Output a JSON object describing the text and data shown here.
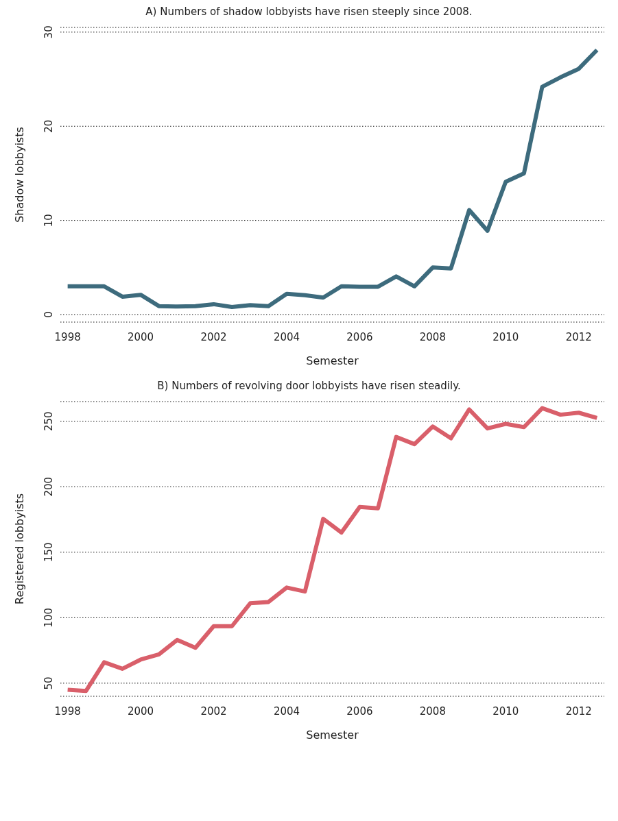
{
  "chart_data": [
    {
      "type": "line",
      "title": "A) Numbers of shadow lobbyists have risen steeply since 2008.",
      "xlabel": "Semester",
      "ylabel": "Shadow lobbyists",
      "grid": "y",
      "x": [
        1998,
        1998.5,
        1999,
        1999.5,
        2000,
        2000.5,
        2001,
        2001.5,
        2002,
        2002.5,
        2003,
        2003.5,
        2004,
        2004.5,
        2005,
        2005.5,
        2006,
        2006.5,
        2007,
        2007.5,
        2008,
        2008.5,
        2009,
        2009.5,
        2010,
        2010.5,
        2011,
        2011.5,
        2012,
        2012.5
      ],
      "series": [
        {
          "color": "#3d6b7d",
          "values": [
            3,
            3,
            3,
            1.9,
            2.1,
            0.9,
            0.85,
            0.9,
            1.1,
            0.8,
            1,
            0.9,
            2.2,
            2.05,
            1.8,
            3,
            2.95,
            2.95,
            4.05,
            3,
            5,
            4.9,
            11.1,
            8.9,
            14.1,
            15,
            24.2,
            25.2,
            26.1,
            28.1
          ]
        }
      ],
      "xlim": [
        1997.8,
        2012.7
      ],
      "xticks": [
        1998,
        2000,
        2002,
        2004,
        2006,
        2008,
        2010,
        2012
      ],
      "ylim": [
        -0.8,
        30.5
      ],
      "yticks": [
        0,
        10,
        20,
        30
      ]
    },
    {
      "type": "line",
      "title": "B) Numbers of revolving door lobbyists have risen steadily.",
      "xlabel": "Semester",
      "ylabel": "Registered lobbyists",
      "grid": "y",
      "x": [
        1998,
        1998.5,
        1999,
        1999.5,
        2000,
        2000.5,
        2001,
        2001.5,
        2002,
        2002.5,
        2003,
        2003.5,
        2004,
        2004.5,
        2005,
        2005.5,
        2006,
        2006.5,
        2007,
        2007.5,
        2008,
        2008.5,
        2009,
        2009.5,
        2010,
        2010.5,
        2011,
        2011.5,
        2012,
        2012.5
      ],
      "series": [
        {
          "color": "#d95f6a",
          "values": [
            45,
            44,
            66,
            61,
            68,
            72,
            83,
            77,
            93.5,
            93.5,
            111,
            112,
            123,
            120,
            175.5,
            165,
            184.5,
            183.5,
            238,
            232.5,
            246,
            237,
            259,
            244.5,
            248,
            245.5,
            260,
            255,
            256.5,
            252.5
          ]
        }
      ],
      "xlim": [
        1997.8,
        2012.7
      ],
      "xticks": [
        1998,
        2000,
        2002,
        2004,
        2006,
        2008,
        2010,
        2012
      ],
      "ylim": [
        40,
        265
      ],
      "yticks": [
        50,
        100,
        150,
        200,
        250
      ]
    }
  ]
}
